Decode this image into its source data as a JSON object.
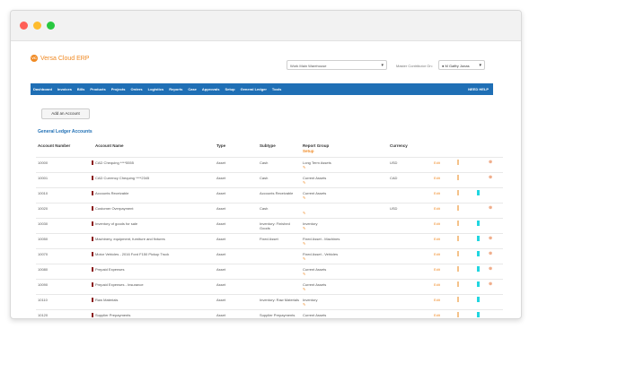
{
  "brand": {
    "name": "Versa Cloud ERP",
    "logo_mark": "VC"
  },
  "header": {
    "warehouse": "Work Main Warehouse",
    "contributor_label": "Master Contributor On:",
    "user": "M Gaffry Jonas"
  },
  "nav": {
    "items": [
      "Dashboard",
      "Invoices",
      "Bills",
      "Products",
      "Projects",
      "Orders",
      "Logistics",
      "Reports",
      "Case",
      "Approvals",
      "Setup",
      "General Ledger",
      "Tools"
    ],
    "help": "NEED HELP"
  },
  "add_button": "Add an Account",
  "section_title": "General Ledger Accounts",
  "table": {
    "headers": {
      "account_number": "Account Number",
      "account_name": "Account Name",
      "type": "Type",
      "subtype": "Subtype",
      "report_group": "Report Group",
      "report_group_sub": "Setup",
      "currency": "Currency"
    },
    "edit_label": "Edit",
    "rows": [
      {
        "number": "10000",
        "name": "CAD Chequing ****5555",
        "type": "Asset",
        "subtype": "Cash",
        "group": "Long Term Assets",
        "currency": "USD",
        "cyan": false,
        "trash": true
      },
      {
        "number": "10001",
        "name": "CAD Currency Chequing ****2345",
        "type": "Asset",
        "subtype": "Cash",
        "group": "Current Assets",
        "currency": "CAD",
        "cyan": false,
        "trash": true
      },
      {
        "number": "10010",
        "name": "Accounts Receivable",
        "type": "Asset",
        "subtype": "Accounts Receivable",
        "group": "Current Assets",
        "currency": "",
        "cyan": true,
        "trash": false
      },
      {
        "number": "10020",
        "name": "Customer Overpayment",
        "type": "Asset",
        "subtype": "Cash",
        "group": "",
        "currency": "USD",
        "cyan": false,
        "trash": true
      },
      {
        "number": "10030",
        "name": "Inventory of goods for sale",
        "type": "Asset",
        "subtype": "Inventory: Finished Goods",
        "group": "Inventory",
        "currency": "",
        "cyan": true,
        "trash": false
      },
      {
        "number": "10050",
        "name": "Machinery, equipment, furniture and fixtures",
        "type": "Asset",
        "subtype": "Fixed Asset",
        "group": "Fixed Asset - Machines",
        "currency": "",
        "cyan": true,
        "trash": true
      },
      {
        "number": "10070",
        "name": "Motor Vehicles - 2016 Ford F150 Pickup Truck",
        "type": "Asset",
        "subtype": "",
        "group": "Fixed Asset - Vehicles",
        "currency": "",
        "cyan": true,
        "trash": true
      },
      {
        "number": "10080",
        "name": "Prepaid Expenses",
        "type": "Asset",
        "subtype": "",
        "group": "Current Assets",
        "currency": "",
        "cyan": true,
        "trash": true
      },
      {
        "number": "10090",
        "name": "Prepaid Expenses - Insurance",
        "type": "Asset",
        "subtype": "",
        "group": "Current Assets",
        "currency": "",
        "cyan": true,
        "trash": true
      },
      {
        "number": "10110",
        "name": "Raw Materials",
        "type": "Asset",
        "subtype": "Inventory: Raw Materials",
        "group": "Inventory",
        "currency": "",
        "cyan": true,
        "trash": false
      },
      {
        "number": "10120",
        "name": "Supplier Prepayments",
        "type": "Asset",
        "subtype": "Supplier Prepayments",
        "group": "Current Assets",
        "currency": "",
        "cyan": true,
        "trash": false
      }
    ]
  }
}
